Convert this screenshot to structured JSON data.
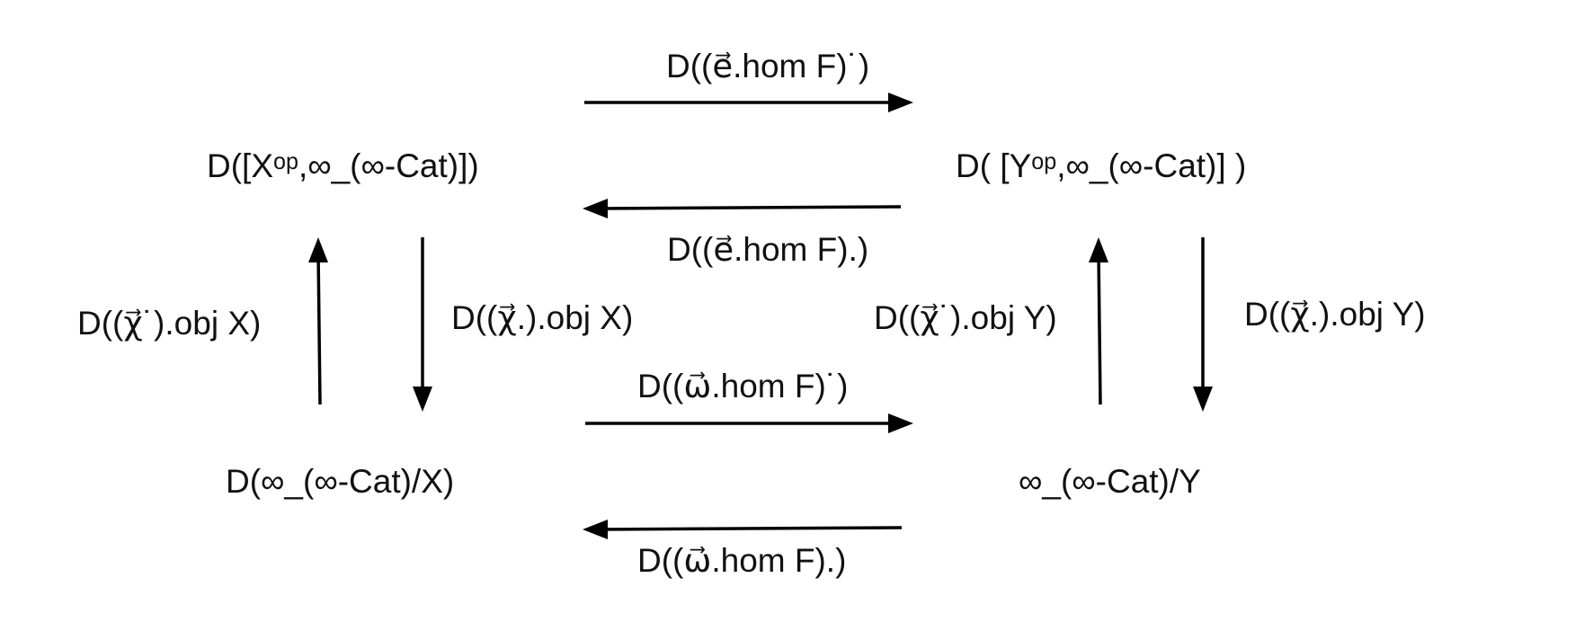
{
  "colors": {
    "ink": "#000000",
    "text": "#111111",
    "background": "#ffffff"
  },
  "nodes": {
    "top_left": "D([Xᵒᵖ,∞_(∞-Cat)])",
    "top_right": "D( [Yᵒᵖ,∞_(∞-Cat)] )",
    "bottom_left": "D(∞_(∞-Cat)/X)",
    "bottom_right": "∞_(∞-Cat)/Y"
  },
  "arrows": {
    "top_forward": "D((e⃗.hom F)˙)",
    "top_backward": "D((e⃗.hom F).)",
    "bottom_forward": "D((ω⃗.hom F)˙)",
    "bottom_backward": "D((ω⃗.hom F).)",
    "left_up": "D((χ⃗˙).obj X)",
    "left_down": "D((χ⃗.).obj X)",
    "right_up": "D((χ⃗˙).obj Y)",
    "right_down": "D((χ⃗.).obj Y)"
  }
}
